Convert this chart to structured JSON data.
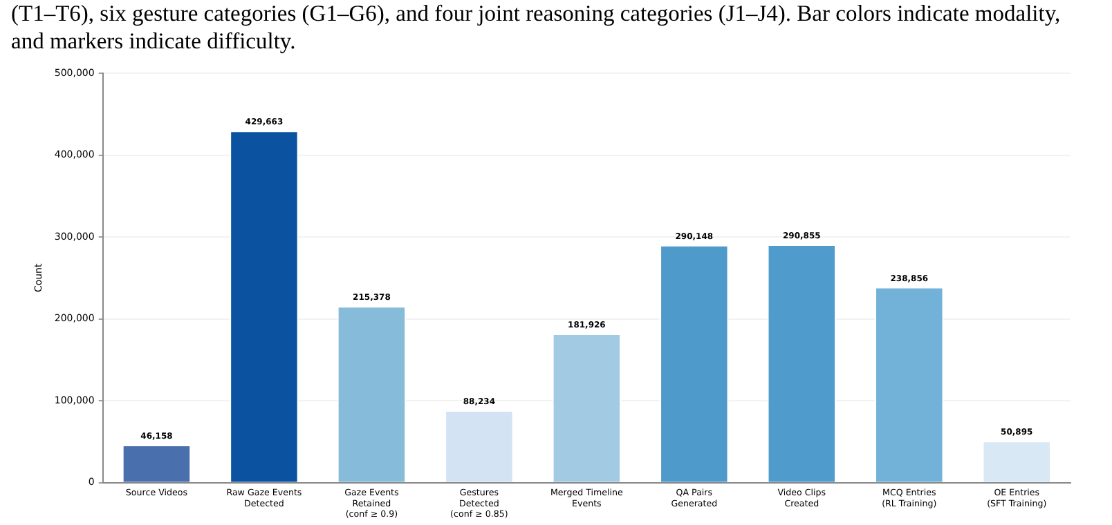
{
  "chart_data": {
    "type": "bar",
    "ylabel": "Count",
    "annotations": [
      "(T1–T6), six gesture categories (G1–G6), and four joint reasoning categories (J1–J4). Bar colors indicate modality, and markers indicate difficulty."
    ],
    "categories": [
      "Source Videos",
      "Raw Gaze Events\nDetected",
      "Gaze Events\nRetained\n(conf ≥ 0.9)",
      "Gestures\nDetected\n(conf ≥ 0.85)",
      "Merged Timeline\nEvents",
      "QA Pairs\nGenerated",
      "Video Clips\nCreated",
      "MCQ Entries\n(RL Training)",
      "OE Entries\n(SFT Training)"
    ],
    "values": [
      46158,
      429663,
      215378,
      88234,
      181926,
      290148,
      290855,
      238856,
      50895
    ],
    "colors": [
      "#4a6fad",
      "#0b52a0",
      "#86bbda",
      "#d3e3f3",
      "#a2cae3",
      "#4d9acb",
      "#4f9bcb",
      "#73b2d8",
      "#d9e8f5"
    ],
    "value_labels": [
      "46,158",
      "429,663",
      "215,378",
      "88,234",
      "181,926",
      "290,148",
      "290,855",
      "238,856",
      "50,895"
    ],
    "ylim": [
      0,
      500000
    ],
    "yticks": [
      0,
      {
        "value": 100000,
        "label": "100,000"
      },
      {
        "value": 200000,
        "label": "200,000"
      },
      {
        "value": 300000,
        "label": "300,000"
      },
      {
        "value": 400000,
        "label": "400,000"
      },
      {
        "value": 500000,
        "label": "500,000"
      }
    ],
    "grid": "y"
  }
}
